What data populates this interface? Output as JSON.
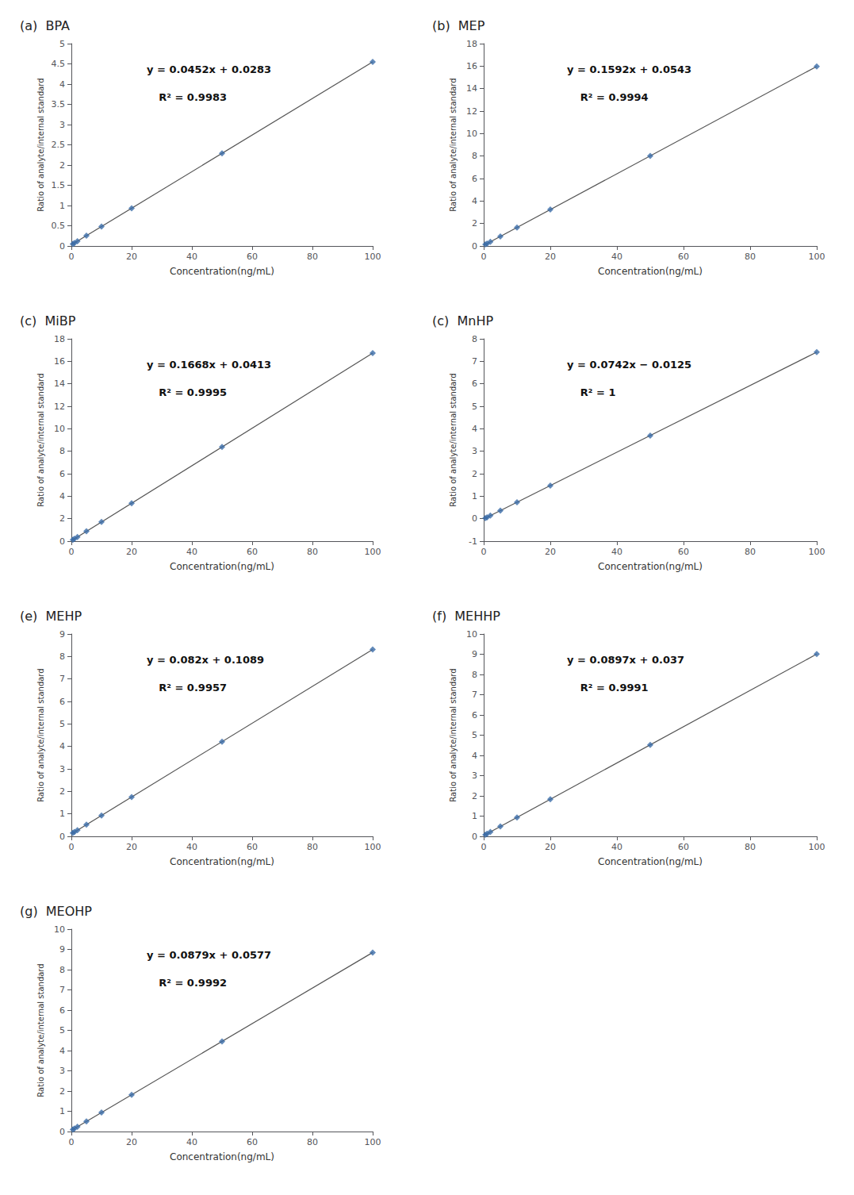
{
  "chart_data": [
    {
      "type": "scatter",
      "title": "(a)  BPA",
      "xlabel": "Concentration(ng/mL)",
      "ylabel": "Ratio of analyte/internal standard",
      "annotations": [
        "y = 0.0452x + 0.0283",
        "R² = 0.9983"
      ],
      "xlim": [
        0,
        100
      ],
      "xticks": [
        0,
        20,
        40,
        60,
        80,
        100
      ],
      "ylim": [
        0,
        5
      ],
      "yticks": [
        0,
        0.5,
        1,
        1.5,
        2,
        2.5,
        3,
        3.5,
        4,
        4.5,
        5
      ],
      "grid": false,
      "series": [
        {
          "type": "scatter",
          "marker": "diamond",
          "color": "#3A6BA8",
          "x": [
            0.5,
            1,
            2,
            5,
            10,
            20,
            50,
            100
          ],
          "values": [
            0.0509,
            0.0735,
            0.1187,
            0.2543,
            0.4803,
            0.9323,
            2.2883,
            4.5483
          ]
        },
        {
          "type": "line",
          "color": "#555555",
          "x": [
            0,
            100
          ],
          "values": [
            0.0283,
            4.5483
          ]
        }
      ]
    },
    {
      "type": "scatter",
      "title": "(b)  MEP",
      "xlabel": "Concentration(ng/mL)",
      "ylabel": "Ratio of analyte/internal standard",
      "annotations": [
        "y = 0.1592x + 0.0543",
        "R² = 0.9994"
      ],
      "xlim": [
        0,
        100
      ],
      "xticks": [
        0,
        20,
        40,
        60,
        80,
        100
      ],
      "ylim": [
        0,
        18
      ],
      "yticks": [
        0,
        2,
        4,
        6,
        8,
        10,
        12,
        14,
        16,
        18
      ],
      "grid": false,
      "series": [
        {
          "type": "scatter",
          "marker": "diamond",
          "color": "#3A6BA8",
          "x": [
            0.5,
            1,
            2,
            5,
            10,
            20,
            50,
            100
          ],
          "values": [
            0.1339,
            0.2135,
            0.3727,
            0.8503,
            1.6463,
            3.2383,
            8.0143,
            15.9743
          ]
        },
        {
          "type": "line",
          "color": "#555555",
          "x": [
            0,
            100
          ],
          "values": [
            0.0543,
            15.9743
          ]
        }
      ]
    },
    {
      "type": "scatter",
      "title": "(c)  MiBP",
      "xlabel": "Concentration(ng/mL)",
      "ylabel": "Ratio of analyte/internal standard",
      "annotations": [
        "y = 0.1668x + 0.0413",
        "R² = 0.9995"
      ],
      "xlim": [
        0,
        100
      ],
      "xticks": [
        0,
        20,
        40,
        60,
        80,
        100
      ],
      "ylim": [
        0,
        18
      ],
      "yticks": [
        0,
        2,
        4,
        6,
        8,
        10,
        12,
        14,
        16,
        18
      ],
      "grid": false,
      "series": [
        {
          "type": "scatter",
          "marker": "diamond",
          "color": "#3A6BA8",
          "x": [
            0.5,
            1,
            2,
            5,
            10,
            20,
            50,
            100
          ],
          "values": [
            0.1247,
            0.2081,
            0.3749,
            0.8753,
            1.7093,
            3.3773,
            8.3813,
            16.7213
          ]
        },
        {
          "type": "line",
          "color": "#555555",
          "x": [
            0,
            100
          ],
          "values": [
            0.0413,
            16.7213
          ]
        }
      ]
    },
    {
      "type": "scatter",
      "title": "(c)  MnHP",
      "xlabel": "Concentration(ng/mL)",
      "ylabel": "Ratio of analyte/internal standard",
      "annotations": [
        "y = 0.0742x − 0.0125",
        "R² = 1"
      ],
      "xlim": [
        0,
        100
      ],
      "xticks": [
        0,
        20,
        40,
        60,
        80,
        100
      ],
      "ylim": [
        -1,
        8
      ],
      "yticks": [
        -1,
        0,
        1,
        2,
        3,
        4,
        5,
        6,
        7,
        8
      ],
      "grid": false,
      "series": [
        {
          "type": "scatter",
          "marker": "diamond",
          "color": "#3A6BA8",
          "x": [
            0.5,
            1,
            2,
            5,
            10,
            20,
            50,
            100
          ],
          "values": [
            0.0246,
            0.0617,
            0.1359,
            0.3585,
            0.7295,
            1.4715,
            3.6975,
            7.4075
          ]
        },
        {
          "type": "line",
          "color": "#555555",
          "x": [
            0,
            100
          ],
          "values": [
            -0.0125,
            7.4075
          ]
        }
      ]
    },
    {
      "type": "scatter",
      "title": "(e)  MEHP",
      "xlabel": "Concentration(ng/mL)",
      "ylabel": "Ratio of analyte/internal standard",
      "annotations": [
        "y = 0.082x + 0.1089",
        "R² = 0.9957"
      ],
      "xlim": [
        0,
        100
      ],
      "xticks": [
        0,
        20,
        40,
        60,
        80,
        100
      ],
      "ylim": [
        0,
        9
      ],
      "yticks": [
        0,
        1,
        2,
        3,
        4,
        5,
        6,
        7,
        8,
        9
      ],
      "grid": false,
      "series": [
        {
          "type": "scatter",
          "marker": "diamond",
          "color": "#3A6BA8",
          "x": [
            0.5,
            1,
            2,
            5,
            10,
            20,
            50,
            100
          ],
          "values": [
            0.1499,
            0.1909,
            0.2729,
            0.5189,
            0.9289,
            1.7489,
            4.2089,
            8.3089
          ]
        },
        {
          "type": "line",
          "color": "#555555",
          "x": [
            0,
            100
          ],
          "values": [
            0.1089,
            8.3089
          ]
        }
      ]
    },
    {
      "type": "scatter",
      "title": "(f)  MEHHP",
      "xlabel": "Concentration(ng/mL)",
      "ylabel": "Ratio of analyte/internal standard",
      "annotations": [
        "y = 0.0897x + 0.037",
        "R² = 0.9991"
      ],
      "xlim": [
        0,
        100
      ],
      "xticks": [
        0,
        20,
        40,
        60,
        80,
        100
      ],
      "ylim": [
        0,
        10
      ],
      "yticks": [
        0,
        1,
        2,
        3,
        4,
        5,
        6,
        7,
        8,
        9,
        10
      ],
      "grid": false,
      "series": [
        {
          "type": "scatter",
          "marker": "diamond",
          "color": "#3A6BA8",
          "x": [
            0.5,
            1,
            2,
            5,
            10,
            20,
            50,
            100
          ],
          "values": [
            0.08185,
            0.1267,
            0.2164,
            0.4855,
            0.934,
            1.831,
            4.522,
            9.007
          ]
        },
        {
          "type": "line",
          "color": "#555555",
          "x": [
            0,
            100
          ],
          "values": [
            0.037,
            9.007
          ]
        }
      ]
    },
    {
      "type": "scatter",
      "title": "(g)  MEOHP",
      "xlabel": "Concentration(ng/mL)",
      "ylabel": "Ratio of analyte/internal standard",
      "annotations": [
        "y = 0.0879x + 0.0577",
        "R² = 0.9992"
      ],
      "xlim": [
        0,
        100
      ],
      "xticks": [
        0,
        20,
        40,
        60,
        80,
        100
      ],
      "ylim": [
        0,
        10
      ],
      "yticks": [
        0,
        1,
        2,
        3,
        4,
        5,
        6,
        7,
        8,
        9,
        10
      ],
      "grid": false,
      "series": [
        {
          "type": "scatter",
          "marker": "diamond",
          "color": "#3A6BA8",
          "x": [
            0.5,
            1,
            2,
            5,
            10,
            20,
            50,
            100
          ],
          "values": [
            0.10165,
            0.1456,
            0.2335,
            0.4972,
            0.9367,
            1.8157,
            4.4527,
            8.8477
          ]
        },
        {
          "type": "line",
          "color": "#555555",
          "x": [
            0,
            100
          ],
          "values": [
            0.0577,
            8.8477
          ]
        }
      ]
    }
  ]
}
